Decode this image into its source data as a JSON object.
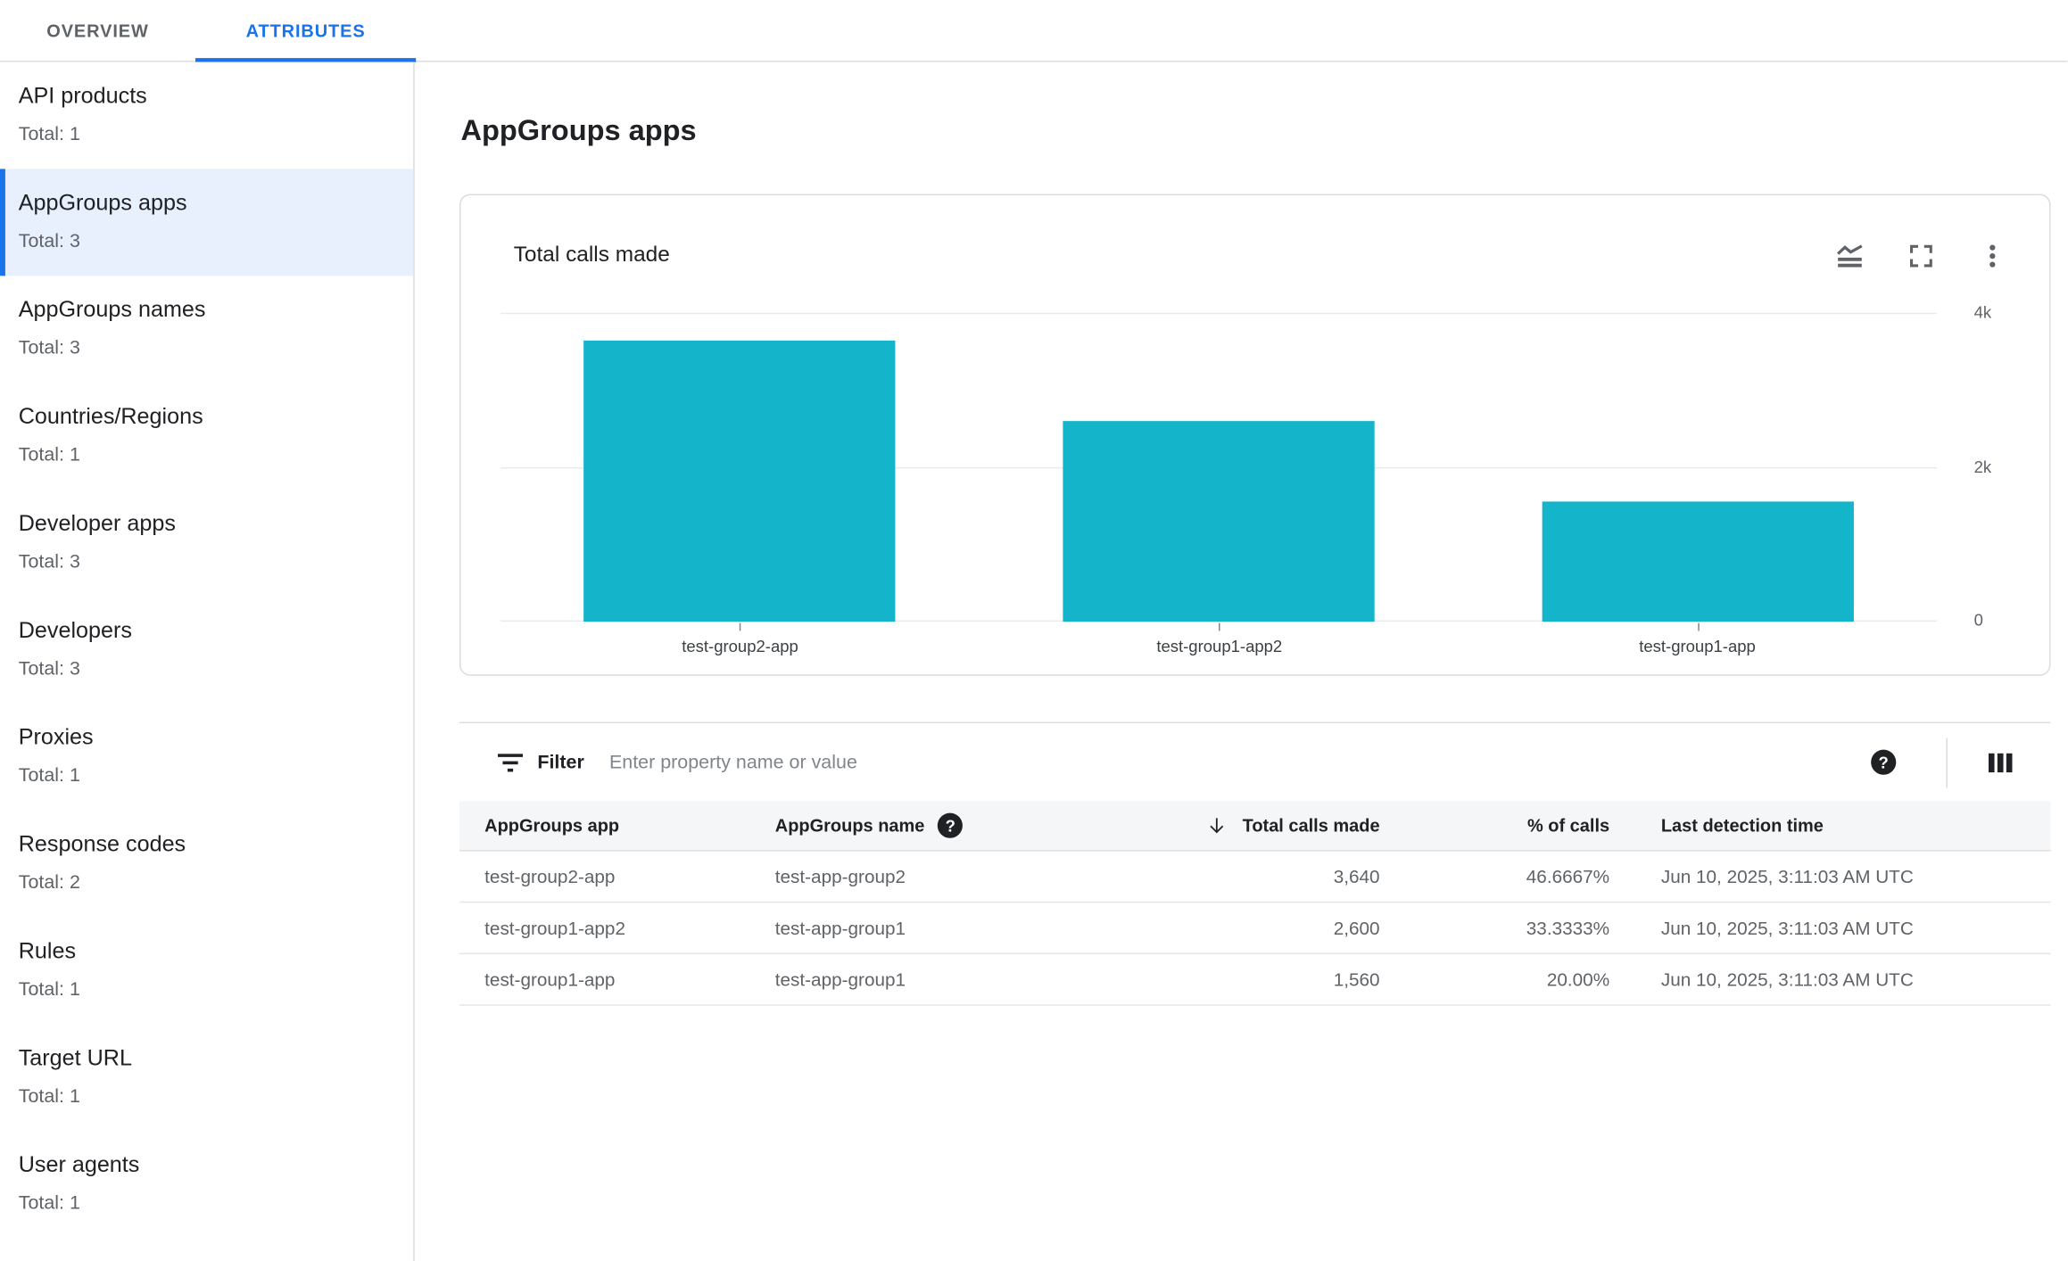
{
  "tabs": [
    {
      "label": "OVERVIEW",
      "active": false
    },
    {
      "label": "ATTRIBUTES",
      "active": true
    }
  ],
  "sidebar": {
    "items": [
      {
        "label": "API products",
        "total": "Total: 1",
        "selected": false
      },
      {
        "label": "AppGroups apps",
        "total": "Total: 3",
        "selected": true
      },
      {
        "label": "AppGroups names",
        "total": "Total: 3",
        "selected": false
      },
      {
        "label": "Countries/Regions",
        "total": "Total: 1",
        "selected": false
      },
      {
        "label": "Developer apps",
        "total": "Total: 3",
        "selected": false
      },
      {
        "label": "Developers",
        "total": "Total: 3",
        "selected": false
      },
      {
        "label": "Proxies",
        "total": "Total: 1",
        "selected": false
      },
      {
        "label": "Response codes",
        "total": "Total: 2",
        "selected": false
      },
      {
        "label": "Rules",
        "total": "Total: 1",
        "selected": false
      },
      {
        "label": "Target URL",
        "total": "Total: 1",
        "selected": false
      },
      {
        "label": "User agents",
        "total": "Total: 1",
        "selected": false
      }
    ]
  },
  "page": {
    "title": "AppGroups apps"
  },
  "chart_card": {
    "title": "Total calls made",
    "icons": [
      "chart-type-icon",
      "fullscreen-icon",
      "more-options-icon"
    ]
  },
  "chart_data": {
    "type": "bar",
    "title": "Total calls made",
    "categories": [
      "test-group2-app",
      "test-group1-app2",
      "test-group1-app"
    ],
    "values": [
      3640,
      2600,
      1560
    ],
    "ylim": [
      0,
      4000
    ],
    "yticks": [
      {
        "label": "4k",
        "value": 4000
      },
      {
        "label": "2k",
        "value": 2000
      },
      {
        "label": "0",
        "value": 0
      }
    ],
    "bar_color": "#14B5CB",
    "grid": "horizontal",
    "legend": "none"
  },
  "filter": {
    "label": "Filter",
    "placeholder": "Enter property name or value"
  },
  "table": {
    "columns": [
      "AppGroups app",
      "AppGroups name",
      "Total calls made",
      "% of calls",
      "Last detection time"
    ],
    "sorted_column": "Total calls made",
    "sort_direction": "desc",
    "rows": [
      {
        "app": "test-group2-app",
        "name": "test-app-group2",
        "calls": "3,640",
        "pct": "46.6667%",
        "last": "Jun 10, 2025, 3:11:03 AM UTC"
      },
      {
        "app": "test-group1-app2",
        "name": "test-app-group1",
        "calls": "2,600",
        "pct": "33.3333%",
        "last": "Jun 10, 2025, 3:11:03 AM UTC"
      },
      {
        "app": "test-group1-app",
        "name": "test-app-group1",
        "calls": "1,560",
        "pct": "20.00%",
        "last": "Jun 10, 2025, 3:11:03 AM UTC"
      }
    ]
  },
  "colors": {
    "accent": "#1A73E8",
    "bar": "#14B5CB",
    "selected_bg": "#E8F0FE",
    "grid_line": "#E8EAED"
  }
}
